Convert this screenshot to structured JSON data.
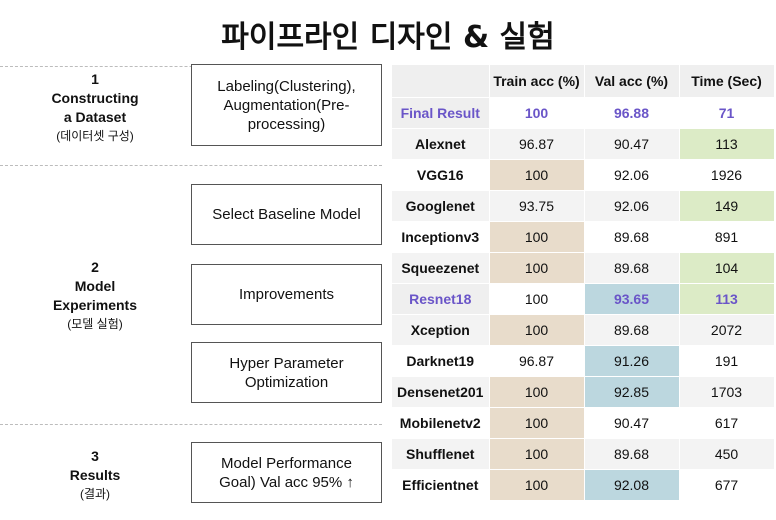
{
  "title": "파이프라인 디자인 & 실험",
  "sections": [
    {
      "num": "1",
      "name_l1": "Constructing",
      "name_l2": "a Dataset",
      "sub": "(데이터셋 구성)"
    },
    {
      "num": "2",
      "name_l1": "Model",
      "name_l2": "Experiments",
      "sub": "(모델 실험)"
    },
    {
      "num": "3",
      "name_l1": "Results",
      "name_l2": "",
      "sub": "(결과)"
    }
  ],
  "steps": [
    {
      "l1": "Labeling(Clustering),",
      "l2": "Augmentation(Pre-",
      "l3": "processing)"
    },
    {
      "l1": "Select Baseline Model",
      "l2": "",
      "l3": ""
    },
    {
      "l1": "Improvements",
      "l2": "",
      "l3": ""
    },
    {
      "l1": "Hyper Parameter",
      "l2": "Optimization",
      "l3": ""
    },
    {
      "l1": "Model Performance",
      "l2": "Goal) Val acc 95% ↑",
      "l3": ""
    }
  ],
  "table": {
    "headers": [
      "",
      "Train acc (%)",
      "Val acc (%)",
      "Time (Sec)"
    ],
    "rows": [
      {
        "model": "Final Result",
        "train": "100",
        "val": "96.88",
        "time": "71"
      },
      {
        "model": "Alexnet",
        "train": "96.87",
        "val": "90.47",
        "time": "113"
      },
      {
        "model": "VGG16",
        "train": "100",
        "val": "92.06",
        "time": "1926"
      },
      {
        "model": "Googlenet",
        "train": "93.75",
        "val": "92.06",
        "time": "149"
      },
      {
        "model": "Inceptionv3",
        "train": "100",
        "val": "89.68",
        "time": "891"
      },
      {
        "model": "Squeezenet",
        "train": "100",
        "val": "89.68",
        "time": "104"
      },
      {
        "model": "Resnet18",
        "train": "100",
        "val": "93.65",
        "time": "113"
      },
      {
        "model": "Xception",
        "train": "100",
        "val": "89.68",
        "time": "2072"
      },
      {
        "model": "Darknet19",
        "train": "96.87",
        "val": "91.26",
        "time": "191"
      },
      {
        "model": "Densenet201",
        "train": "100",
        "val": "92.85",
        "time": "1703"
      },
      {
        "model": "Mobilenetv2",
        "train": "100",
        "val": "90.47",
        "time": "617"
      },
      {
        "model": "Shufflenet",
        "train": "100",
        "val": "89.68",
        "time": "450"
      },
      {
        "model": "Efficientnet",
        "train": "100",
        "val": "92.08",
        "time": "677"
      }
    ]
  },
  "colors": {
    "highlight_text": "#6a55c8",
    "best_train": "#e8dccb",
    "best_val": "#bcd7df",
    "best_time": "#dcebc6"
  }
}
